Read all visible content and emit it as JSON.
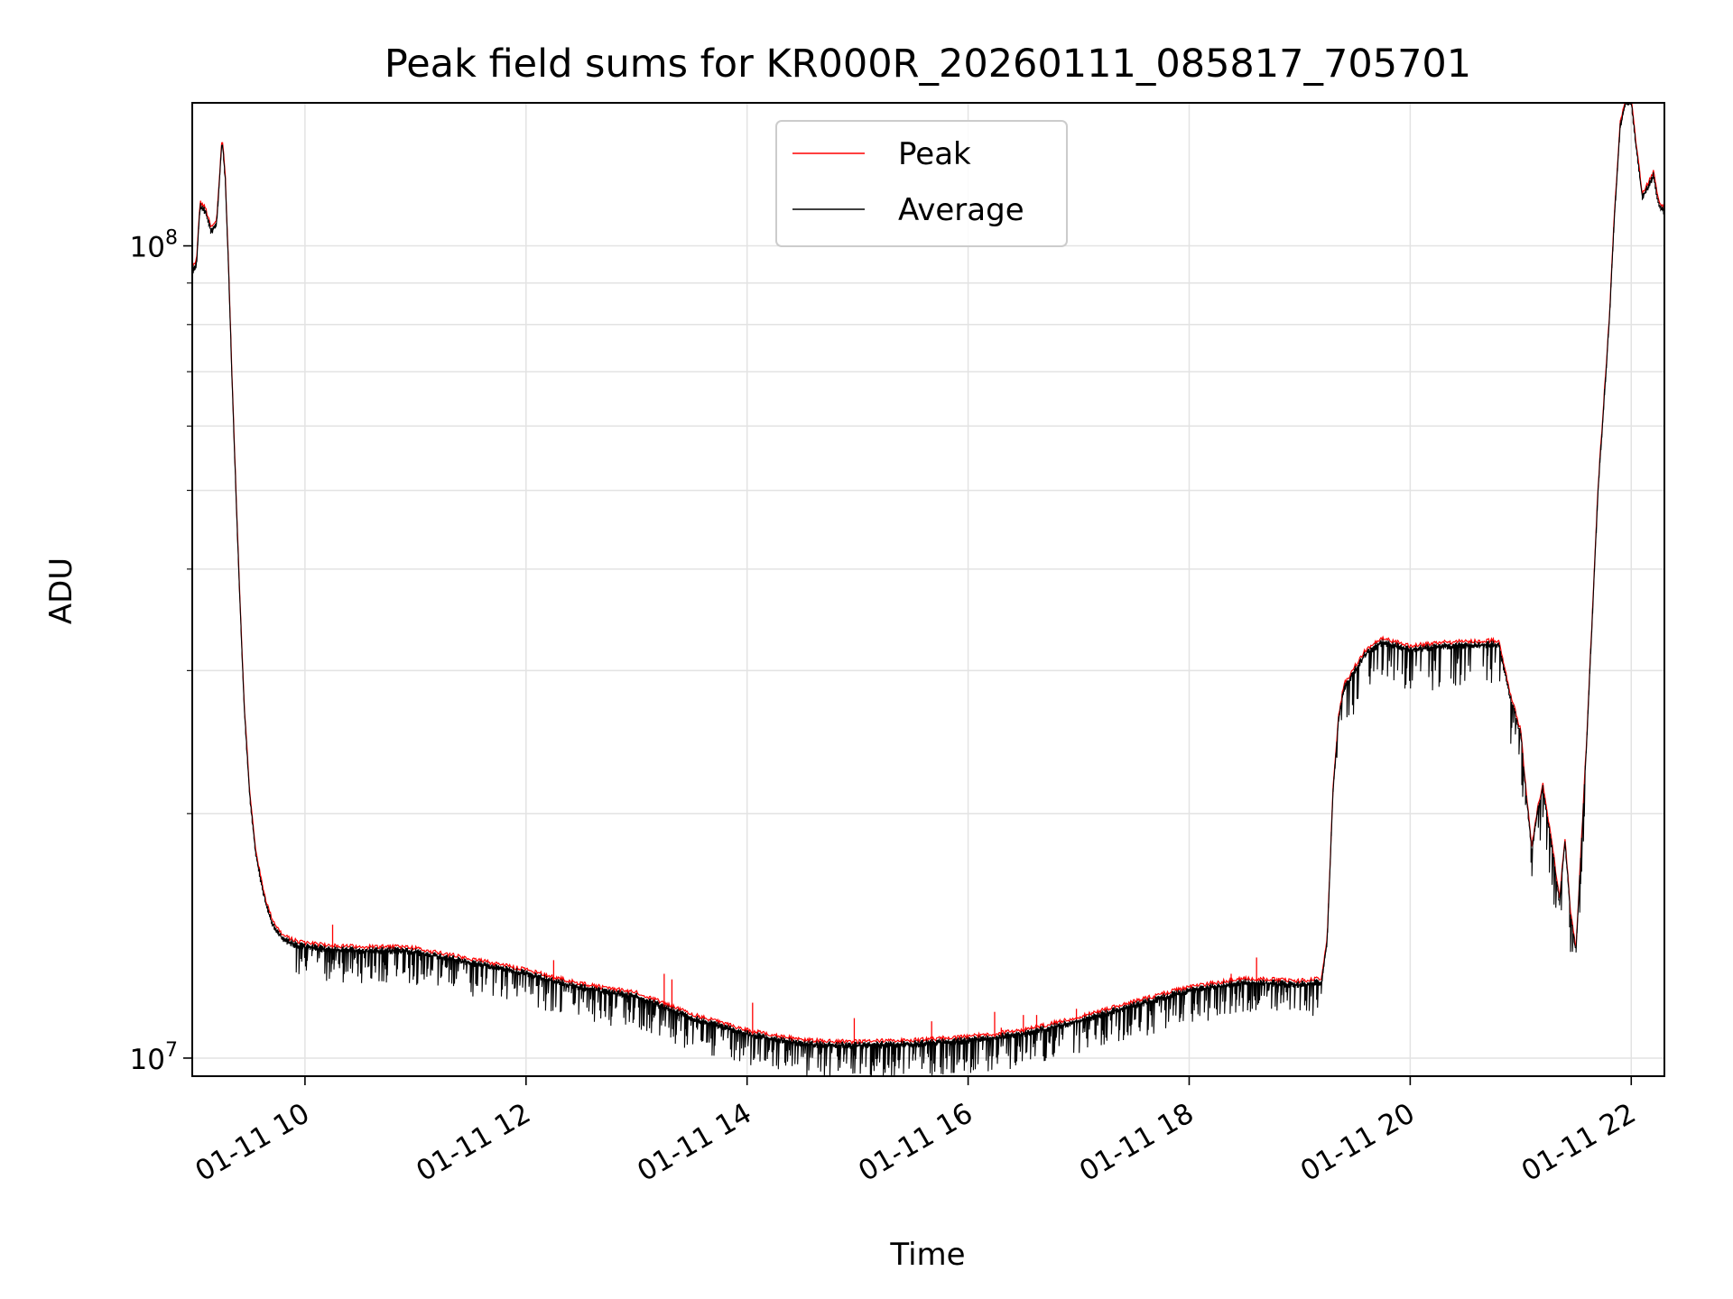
{
  "chart_data": {
    "type": "line",
    "title": "Peak field sums for KR000R_20260111_085817_705701",
    "xlabel": "Time",
    "ylabel": "ADU",
    "x_unit": "hours since 01-11 00:00",
    "xlim": [
      8.98,
      22.3
    ],
    "ylim": [
      9500000.0,
      150000000.0
    ],
    "yscale": "log",
    "grid": true,
    "legend_loc": "upper center",
    "x_ticks": [
      {
        "value": 10,
        "label": "01-11 10"
      },
      {
        "value": 12,
        "label": "01-11 12"
      },
      {
        "value": 14,
        "label": "01-11 14"
      },
      {
        "value": 16,
        "label": "01-11 16"
      },
      {
        "value": 18,
        "label": "01-11 18"
      },
      {
        "value": 20,
        "label": "01-11 20"
      },
      {
        "value": 22,
        "label": "01-11 22"
      }
    ],
    "y_major_ticks": [
      {
        "value": 10000000,
        "base": "10",
        "exp": "7"
      },
      {
        "value": 100000000,
        "base": "10",
        "exp": "8"
      }
    ],
    "series": [
      {
        "name": "Peak",
        "color": "#ff0000"
      },
      {
        "name": "Average",
        "color": "#000000"
      }
    ],
    "x": [
      8.98,
      9.02,
      9.05,
      9.1,
      9.15,
      9.2,
      9.25,
      9.28,
      9.31,
      9.35,
      9.4,
      9.45,
      9.5,
      9.55,
      9.6,
      9.65,
      9.7,
      9.75,
      9.8,
      9.85,
      9.9,
      10.0,
      10.2,
      10.5,
      10.8,
      11.0,
      11.5,
      12.0,
      12.5,
      13.0,
      13.5,
      14.0,
      14.5,
      15.0,
      15.5,
      16.0,
      16.5,
      17.0,
      17.5,
      18.0,
      18.5,
      19.0,
      19.2,
      19.25,
      19.3,
      19.35,
      19.4,
      19.5,
      19.6,
      19.75,
      20.0,
      20.25,
      20.5,
      20.8,
      20.85,
      20.9,
      21.0,
      21.05,
      21.1,
      21.15,
      21.2,
      21.3,
      21.35,
      21.4,
      21.45,
      21.5,
      21.6,
      21.7,
      21.8,
      21.85,
      21.9,
      21.95,
      22.0,
      22.05,
      22.1,
      22.15,
      22.2,
      22.25,
      22.3
    ],
    "values": [
      93000000,
      95000000,
      112000000,
      110000000,
      104000000,
      106000000,
      135000000,
      120000000,
      92000000,
      62000000,
      40000000,
      27000000,
      21000000,
      18000000,
      16500000,
      15400000,
      14700000,
      14300000,
      14000000,
      13900000,
      13800000,
      13700000,
      13600000,
      13550000,
      13550000,
      13500000,
      13100000,
      12700000,
      12200000,
      11900000,
      11200000,
      10700000,
      10400000,
      10350000,
      10400000,
      10500000,
      10700000,
      11100000,
      11600000,
      12100000,
      12400000,
      12300000,
      12400000,
      14000000,
      21000000,
      26000000,
      28500000,
      30000000,
      31500000,
      32500000,
      31800000,
      32100000,
      32200000,
      32300000,
      30000000,
      28000000,
      25000000,
      21000000,
      18000000,
      20000000,
      21500000,
      17500000,
      15500000,
      18500000,
      15000000,
      13500000,
      25000000,
      50000000,
      80000000,
      110000000,
      140000000,
      150000000,
      150000000,
      130000000,
      115000000,
      118000000,
      122000000,
      112000000,
      110000000
    ],
    "peak_spikes": [
      {
        "x": 10.25,
        "value": 14600000
      },
      {
        "x": 12.25,
        "value": 13200000
      },
      {
        "x": 13.25,
        "value": 12700000
      },
      {
        "x": 13.32,
        "value": 12500000
      },
      {
        "x": 14.05,
        "value": 11700000
      },
      {
        "x": 14.97,
        "value": 11200000
      },
      {
        "x": 15.67,
        "value": 11100000
      },
      {
        "x": 16.24,
        "value": 11400000
      },
      {
        "x": 16.3,
        "value": 10900000
      },
      {
        "x": 16.5,
        "value": 11300000
      },
      {
        "x": 16.62,
        "value": 11300000
      },
      {
        "x": 16.98,
        "value": 11500000
      },
      {
        "x": 18.38,
        "value": 12700000
      },
      {
        "x": 18.61,
        "value": 13300000
      }
    ]
  }
}
